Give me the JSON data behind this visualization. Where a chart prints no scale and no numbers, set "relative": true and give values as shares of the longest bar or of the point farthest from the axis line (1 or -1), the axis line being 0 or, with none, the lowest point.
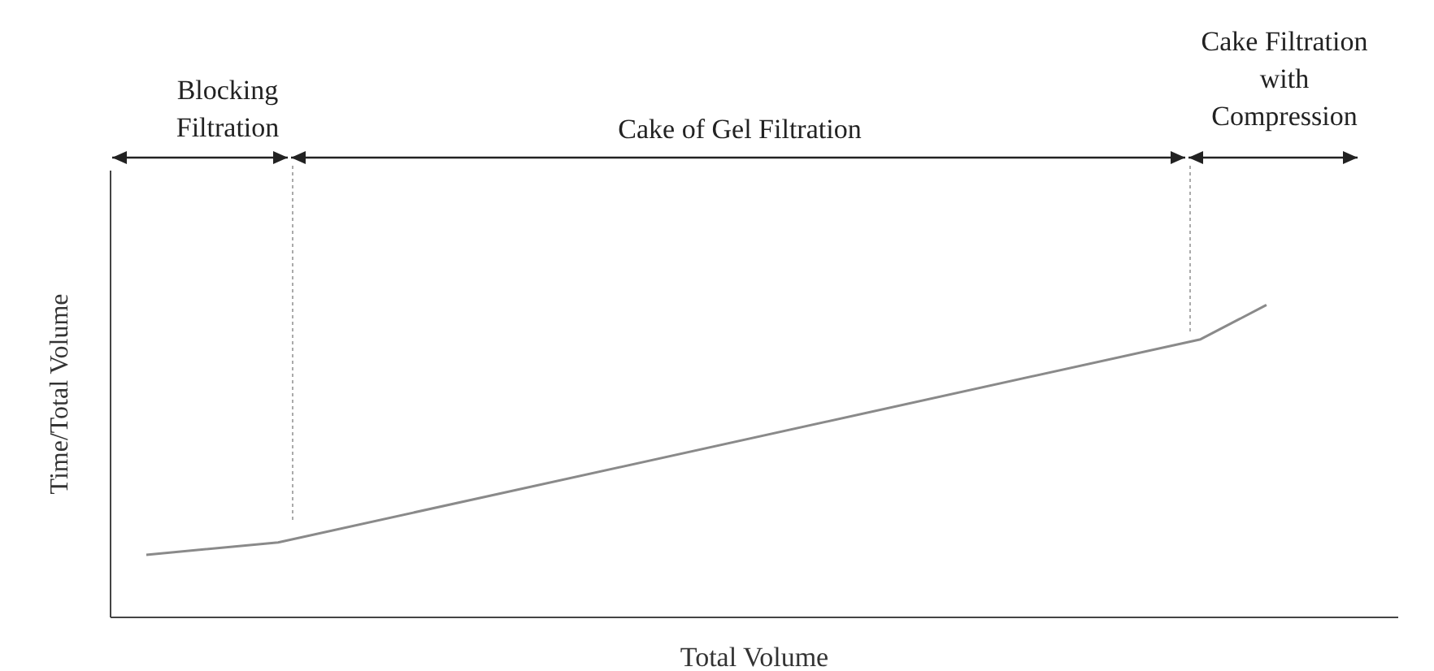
{
  "chart_data": {
    "type": "line",
    "relative": true,
    "xlabel": "Total Volume",
    "ylabel": "Time/Total Volume",
    "tick_labels": false,
    "marker": "none",
    "categories": [
      null,
      null,
      null,
      null,
      null,
      null,
      null,
      null,
      null,
      null,
      null,
      null,
      null,
      null,
      null,
      null,
      null,
      null,
      null,
      null
    ],
    "series": [
      {
        "color": "#8a8a8a",
        "values": [
          0.2,
          null,
          0.24,
          null,
          null,
          null,
          null,
          null,
          null,
          null,
          null,
          null,
          null,
          null,
          null,
          null,
          0.89,
          1,
          null,
          null
        ]
      }
    ],
    "annotations": [
      "Blocking\nFiltration",
      "Cake of Gel Filtration",
      "Cake Filtration\nwith\nCompression"
    ]
  }
}
